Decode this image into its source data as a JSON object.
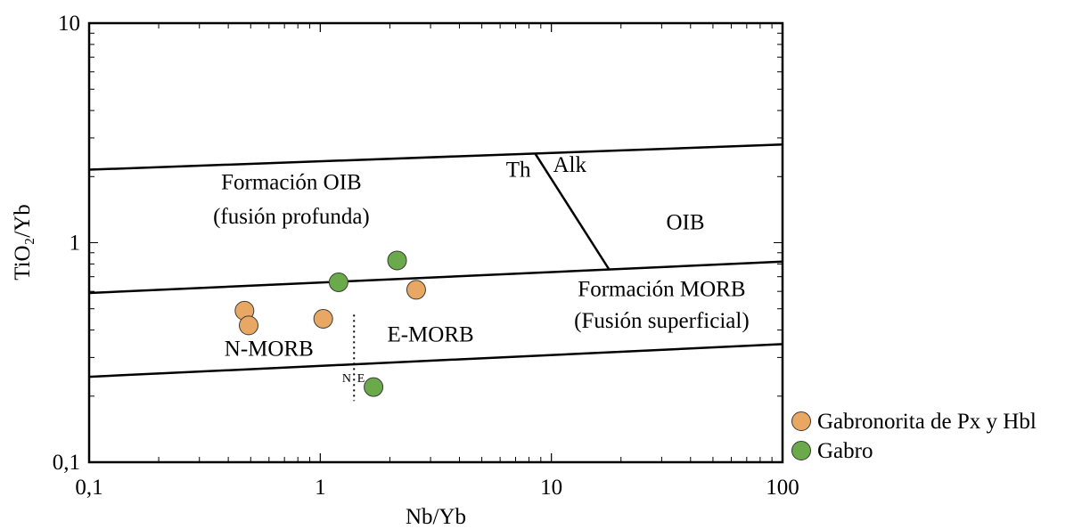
{
  "chart_data": {
    "type": "scatter",
    "title": "",
    "xlabel": "Nb/Yb",
    "ylabel": "TiO₂/Yb",
    "xscale": "log",
    "yscale": "log",
    "xlim": [
      0.1,
      100
    ],
    "ylim": [
      0.1,
      10
    ],
    "x_tick_labels": [
      "0,1",
      "1",
      "10",
      "100"
    ],
    "y_tick_labels": [
      "0,1",
      "1",
      "10"
    ],
    "grid": false,
    "legend_position": "bottom-right outside",
    "series": [
      {
        "name": "Gabronorita de Px y Hbl",
        "color": "#E8A763",
        "points": [
          {
            "x": 0.47,
            "y": 0.49
          },
          {
            "x": 0.49,
            "y": 0.42
          },
          {
            "x": 1.03,
            "y": 0.45
          },
          {
            "x": 2.6,
            "y": 0.61
          }
        ]
      },
      {
        "name": "Gabro",
        "color": "#6BAA4A",
        "points": [
          {
            "x": 1.2,
            "y": 0.66
          },
          {
            "x": 2.15,
            "y": 0.83
          },
          {
            "x": 1.7,
            "y": 0.22
          }
        ]
      }
    ],
    "boundary_lines": [
      {
        "name": "oib-array-upper",
        "points": [
          [
            0.1,
            2.15
          ],
          [
            100,
            2.8
          ]
        ]
      },
      {
        "name": "morb-oib-boundary",
        "points": [
          [
            0.1,
            0.59
          ],
          [
            100,
            0.82
          ]
        ]
      },
      {
        "name": "morb-array-lower",
        "points": [
          [
            0.1,
            0.245
          ],
          [
            100,
            0.345
          ]
        ]
      },
      {
        "name": "th-alk-divider",
        "points": [
          [
            8.5,
            2.55
          ],
          [
            17.7,
            0.76
          ]
        ]
      }
    ],
    "divider_dotted": {
      "x": 1.4,
      "y_range": [
        0.19,
        0.47
      ]
    },
    "annotations": [
      {
        "text": "Formación OIB",
        "x": 0.75,
        "y": 1.75
      },
      {
        "text": "(fusión profunda)",
        "x": 0.75,
        "y": 1.22
      },
      {
        "text": "Th",
        "x": 7.2,
        "y": 2.0
      },
      {
        "text": "Alk",
        "x": 12.0,
        "y": 2.1
      },
      {
        "text": "OIB",
        "x": 38.0,
        "y": 1.15
      },
      {
        "text": "Formación MORB",
        "x": 30.0,
        "y": 0.57
      },
      {
        "text": "(Fusión superficial)",
        "x": 30.0,
        "y": 0.41
      },
      {
        "text": "N-MORB",
        "x": 0.6,
        "y": 0.305
      },
      {
        "text": "E-MORB",
        "x": 3.0,
        "y": 0.355
      },
      {
        "text": "N",
        "x": 1.3,
        "y": 0.232
      },
      {
        "text": "E",
        "x": 1.5,
        "y": 0.232
      }
    ]
  }
}
